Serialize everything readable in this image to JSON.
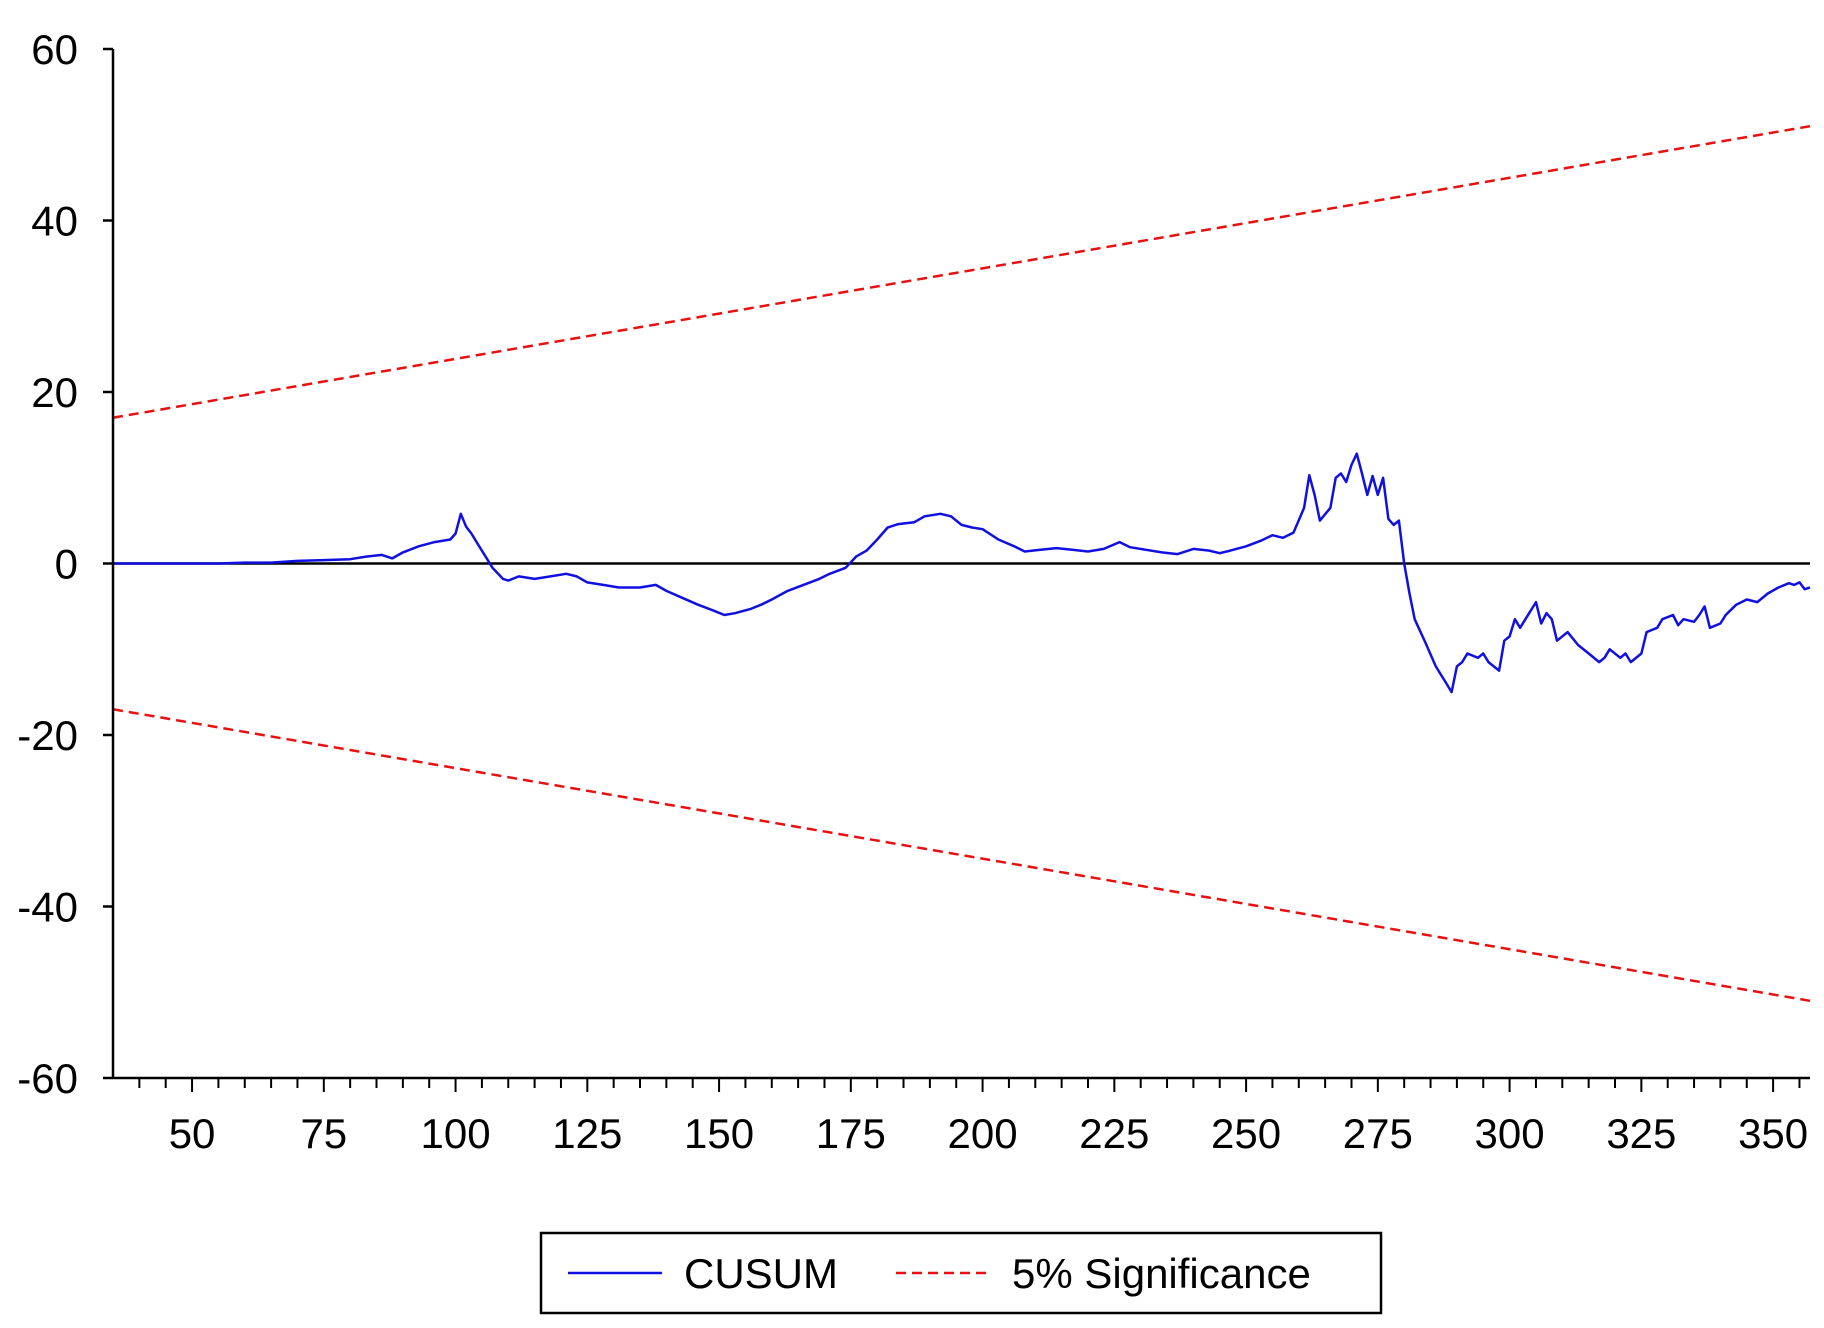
{
  "chart_data": {
    "type": "line",
    "title": "",
    "xlabel": "",
    "ylabel": "",
    "xlim": [
      35,
      357
    ],
    "ylim": [
      -60,
      60
    ],
    "x_ticks": [
      50,
      75,
      100,
      125,
      150,
      175,
      200,
      225,
      250,
      275,
      300,
      325,
      350
    ],
    "y_ticks": [
      60,
      40,
      20,
      0,
      -20,
      -40,
      -60
    ],
    "grid": false,
    "zero_line": true,
    "legend": {
      "placement": "bottom-center"
    },
    "series": [
      {
        "name": "CUSUM",
        "color": "#1010e0",
        "style": "solid",
        "points": [
          [
            35,
            0
          ],
          [
            45,
            0
          ],
          [
            55,
            0
          ],
          [
            60,
            0.1
          ],
          [
            65,
            0.1
          ],
          [
            70,
            0.3
          ],
          [
            75,
            0.4
          ],
          [
            80,
            0.5
          ],
          [
            83,
            0.8
          ],
          [
            86,
            1.0
          ],
          [
            88,
            0.6
          ],
          [
            90,
            1.3
          ],
          [
            93,
            2.0
          ],
          [
            96,
            2.5
          ],
          [
            99,
            2.8
          ],
          [
            100,
            3.5
          ],
          [
            101,
            5.8
          ],
          [
            102,
            4.3
          ],
          [
            103,
            3.5
          ],
          [
            104,
            2.5
          ],
          [
            106,
            0.5
          ],
          [
            107,
            -0.5
          ],
          [
            109,
            -1.8
          ],
          [
            110,
            -2.0
          ],
          [
            112,
            -1.5
          ],
          [
            115,
            -1.8
          ],
          [
            118,
            -1.5
          ],
          [
            121,
            -1.2
          ],
          [
            123,
            -1.5
          ],
          [
            125,
            -2.2
          ],
          [
            128,
            -2.5
          ],
          [
            131,
            -2.8
          ],
          [
            135,
            -2.8
          ],
          [
            138,
            -2.5
          ],
          [
            140,
            -3.2
          ],
          [
            143,
            -4.0
          ],
          [
            146,
            -4.8
          ],
          [
            149,
            -5.5
          ],
          [
            151,
            -6.0
          ],
          [
            153,
            -5.8
          ],
          [
            156,
            -5.3
          ],
          [
            158,
            -4.8
          ],
          [
            160,
            -4.2
          ],
          [
            163,
            -3.2
          ],
          [
            166,
            -2.5
          ],
          [
            169,
            -1.8
          ],
          [
            171,
            -1.2
          ],
          [
            174,
            -0.5
          ],
          [
            176,
            0.8
          ],
          [
            178,
            1.5
          ],
          [
            180,
            2.8
          ],
          [
            182,
            4.2
          ],
          [
            184,
            4.6
          ],
          [
            187,
            4.8
          ],
          [
            189,
            5.5
          ],
          [
            192,
            5.8
          ],
          [
            194,
            5.5
          ],
          [
            196,
            4.5
          ],
          [
            198,
            4.2
          ],
          [
            200,
            4.0
          ],
          [
            203,
            2.8
          ],
          [
            206,
            2.0
          ],
          [
            208,
            1.4
          ],
          [
            211,
            1.6
          ],
          [
            214,
            1.8
          ],
          [
            217,
            1.6
          ],
          [
            220,
            1.4
          ],
          [
            223,
            1.7
          ],
          [
            226,
            2.5
          ],
          [
            228,
            1.9
          ],
          [
            231,
            1.6
          ],
          [
            234,
            1.3
          ],
          [
            237,
            1.1
          ],
          [
            240,
            1.7
          ],
          [
            243,
            1.5
          ],
          [
            245,
            1.2
          ],
          [
            247,
            1.5
          ],
          [
            250,
            2.0
          ],
          [
            253,
            2.7
          ],
          [
            255,
            3.3
          ],
          [
            257,
            3.0
          ],
          [
            259,
            3.6
          ],
          [
            261,
            6.5
          ],
          [
            262,
            10.3
          ],
          [
            263,
            8.0
          ],
          [
            264,
            5.0
          ],
          [
            266,
            6.5
          ],
          [
            267,
            10.0
          ],
          [
            268,
            10.5
          ],
          [
            269,
            9.5
          ],
          [
            270,
            11.5
          ],
          [
            271,
            12.8
          ],
          [
            272,
            10.5
          ],
          [
            273,
            8.0
          ],
          [
            274,
            10.2
          ],
          [
            275,
            8.0
          ],
          [
            276,
            10.0
          ],
          [
            277,
            5.2
          ],
          [
            278,
            4.5
          ],
          [
            279,
            5.0
          ],
          [
            280,
            0.0
          ],
          [
            281,
            -3.5
          ],
          [
            282,
            -6.5
          ],
          [
            284,
            -9.2
          ],
          [
            286,
            -12.0
          ],
          [
            288,
            -14.0
          ],
          [
            289,
            -15.0
          ],
          [
            290,
            -12.0
          ],
          [
            291,
            -11.5
          ],
          [
            292,
            -10.5
          ],
          [
            294,
            -11.0
          ],
          [
            295,
            -10.5
          ],
          [
            296,
            -11.5
          ],
          [
            297,
            -12.0
          ],
          [
            298,
            -12.5
          ],
          [
            299,
            -9.0
          ],
          [
            300,
            -8.5
          ],
          [
            301,
            -6.5
          ],
          [
            302,
            -7.5
          ],
          [
            303,
            -6.5
          ],
          [
            304,
            -5.5
          ],
          [
            305,
            -4.5
          ],
          [
            306,
            -7.0
          ],
          [
            307,
            -5.8
          ],
          [
            308,
            -6.5
          ],
          [
            309,
            -9.0
          ],
          [
            311,
            -8.0
          ],
          [
            313,
            -9.5
          ],
          [
            315,
            -10.5
          ],
          [
            317,
            -11.5
          ],
          [
            318,
            -11.0
          ],
          [
            319,
            -10.0
          ],
          [
            321,
            -11.0
          ],
          [
            322,
            -10.5
          ],
          [
            323,
            -11.5
          ],
          [
            325,
            -10.5
          ],
          [
            326,
            -8.0
          ],
          [
            328,
            -7.5
          ],
          [
            329,
            -6.5
          ],
          [
            331,
            -6.0
          ],
          [
            332,
            -7.2
          ],
          [
            333,
            -6.5
          ],
          [
            335,
            -6.8
          ],
          [
            336,
            -6.0
          ],
          [
            337,
            -5.0
          ],
          [
            338,
            -7.5
          ],
          [
            340,
            -7.0
          ],
          [
            341,
            -6.0
          ],
          [
            343,
            -4.8
          ],
          [
            345,
            -4.2
          ],
          [
            347,
            -4.5
          ],
          [
            349,
            -3.5
          ],
          [
            351,
            -2.8
          ],
          [
            353,
            -2.3
          ],
          [
            354,
            -2.5
          ],
          [
            355,
            -2.2
          ],
          [
            356,
            -3.0
          ],
          [
            357,
            -2.8
          ]
        ]
      },
      {
        "name": "5% Significance",
        "color": "#e81010",
        "style": "dashed",
        "upper": [
          [
            35,
            17
          ],
          [
            357,
            51
          ]
        ],
        "lower": [
          [
            35,
            -17
          ],
          [
            357,
            -51
          ]
        ]
      }
    ]
  }
}
